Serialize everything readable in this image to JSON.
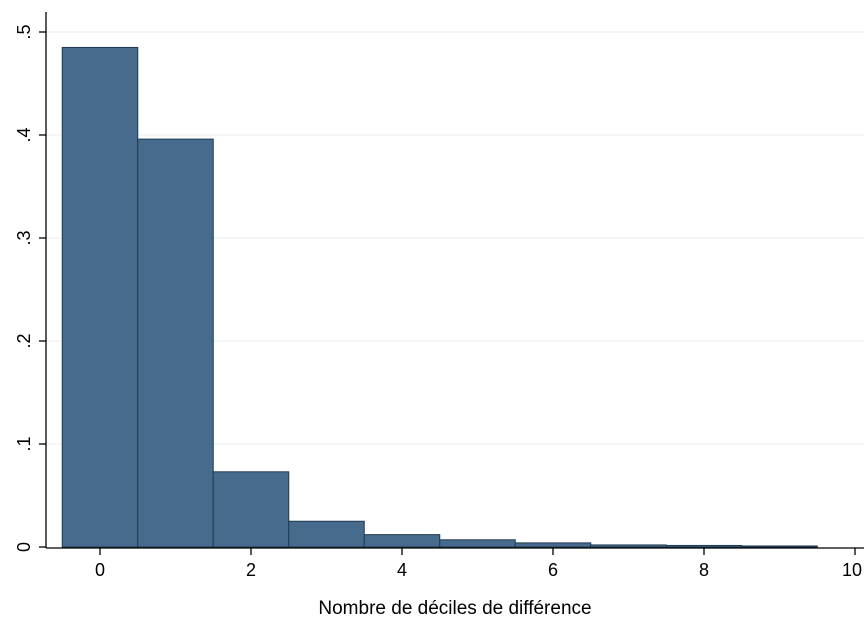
{
  "chart_data": {
    "type": "bar",
    "title": "",
    "xlabel": "Nombre de déciles de différence",
    "ylabel": "",
    "xlim": [
      -0.5,
      10
    ],
    "ylim": [
      0,
      0.5
    ],
    "grid": true,
    "bin_width": 1,
    "bins": [
      {
        "x": 0,
        "value": 0.485
      },
      {
        "x": 1,
        "value": 0.396
      },
      {
        "x": 2,
        "value": 0.073
      },
      {
        "x": 3,
        "value": 0.025
      },
      {
        "x": 4,
        "value": 0.012
      },
      {
        "x": 5,
        "value": 0.007
      },
      {
        "x": 6,
        "value": 0.004
      },
      {
        "x": 7,
        "value": 0.002
      },
      {
        "x": 8,
        "value": 0.0015
      },
      {
        "x": 9,
        "value": 0.001
      }
    ],
    "x_ticks": [
      {
        "value": 0,
        "label": "0"
      },
      {
        "value": 2,
        "label": "2"
      },
      {
        "value": 4,
        "label": "4"
      },
      {
        "value": 6,
        "label": "6"
      },
      {
        "value": 8,
        "label": "8"
      },
      {
        "value": 10,
        "label": "10"
      }
    ],
    "y_ticks": [
      {
        "value": 0,
        "label": "0"
      },
      {
        "value": 0.1,
        "label": ".1"
      },
      {
        "value": 0.2,
        "label": ".2"
      },
      {
        "value": 0.3,
        "label": ".3"
      },
      {
        "value": 0.4,
        "label": ".4"
      },
      {
        "value": 0.5,
        "label": ".5"
      }
    ],
    "colors": {
      "bar_fill": "#476b8d",
      "bar_stroke": "#1f3a52",
      "grid": "#eaf0f3",
      "axis": "#000000"
    }
  }
}
